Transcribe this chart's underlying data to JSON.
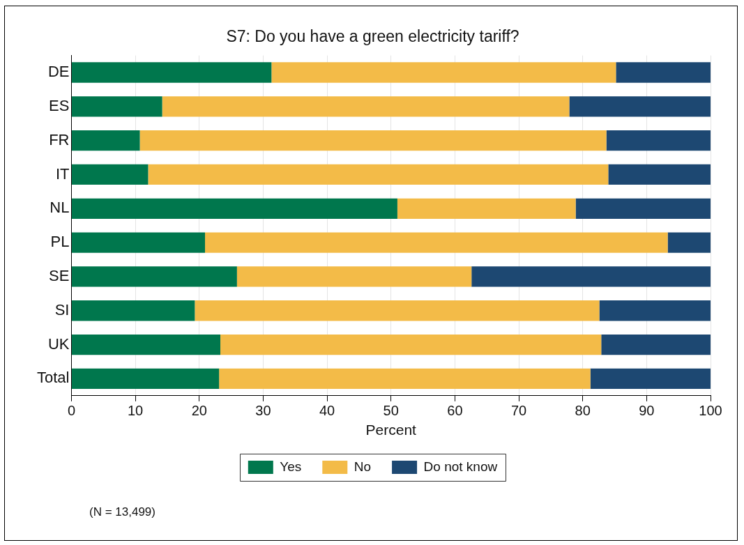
{
  "chart_data": {
    "type": "bar",
    "orientation": "horizontal",
    "stacked": true,
    "title": "S7: Do you have a green electricity tariff?",
    "xlabel": "Percent",
    "categories": [
      "DE",
      "ES",
      "FR",
      "IT",
      "NL",
      "PL",
      "SE",
      "SI",
      "UK",
      "Total"
    ],
    "series": [
      {
        "name": "Yes",
        "color": "#00774d",
        "values": [
          31.3,
          14.2,
          10.7,
          12.0,
          51.0,
          20.9,
          25.9,
          19.3,
          23.3,
          23.1
        ]
      },
      {
        "name": "No",
        "color": "#f3bb48",
        "values": [
          53.9,
          63.7,
          73.0,
          72.0,
          27.9,
          72.4,
          36.7,
          63.3,
          59.6,
          58.1
        ]
      },
      {
        "name": "Do not know",
        "color": "#1d4872",
        "values": [
          14.8,
          22.1,
          16.3,
          16.0,
          21.1,
          6.7,
          37.4,
          17.4,
          17.1,
          18.8
        ]
      }
    ],
    "xlim": [
      0,
      100
    ],
    "xticks": [
      0,
      10,
      20,
      30,
      40,
      50,
      60,
      70,
      80,
      90,
      100
    ],
    "grid": "x",
    "legend": "bottom",
    "annotations": [
      "(N =  13,499)"
    ]
  }
}
